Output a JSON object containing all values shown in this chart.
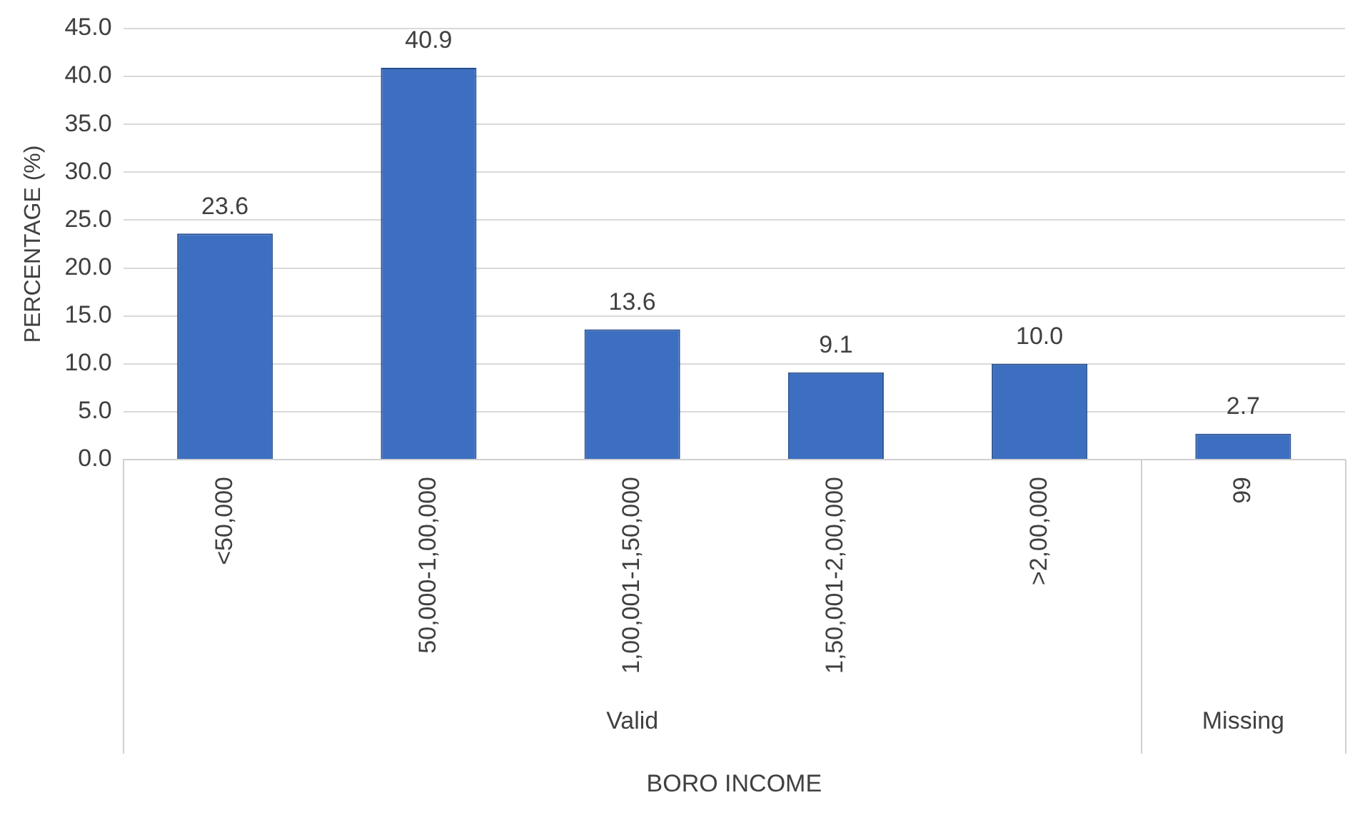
{
  "chart_data": {
    "type": "bar",
    "xlabel": "BORO INCOME",
    "ylabel": "PERCENTAGE (%)",
    "categories": [
      "<50,000",
      "50,000-1,00,000",
      "1,00,001-1,50,000",
      "1,50,001-2,00,000",
      ">2,00,000",
      "99"
    ],
    "values": [
      23.6,
      40.9,
      13.6,
      9.1,
      10.0,
      2.7
    ],
    "value_labels": [
      "23.6",
      "40.9",
      "13.6",
      "9.1",
      "10.0",
      "2.7"
    ],
    "color": "#3d6fc0",
    "ylim": [
      0,
      45
    ],
    "yticks": [
      {
        "value": 0,
        "label": "0.0"
      },
      {
        "value": 5,
        "label": "5.0"
      },
      {
        "value": 10,
        "label": "10.0"
      },
      {
        "value": 15,
        "label": "15.0"
      },
      {
        "value": 20,
        "label": "20.0"
      },
      {
        "value": 25,
        "label": "25.0"
      },
      {
        "value": 30,
        "label": "30.0"
      },
      {
        "value": 35,
        "label": "35.0"
      },
      {
        "value": 40,
        "label": "40.0"
      },
      {
        "value": 45,
        "label": "45.0"
      }
    ],
    "grid": "y",
    "legend": false,
    "annotations": [
      "Valid",
      "Missing"
    ]
  }
}
